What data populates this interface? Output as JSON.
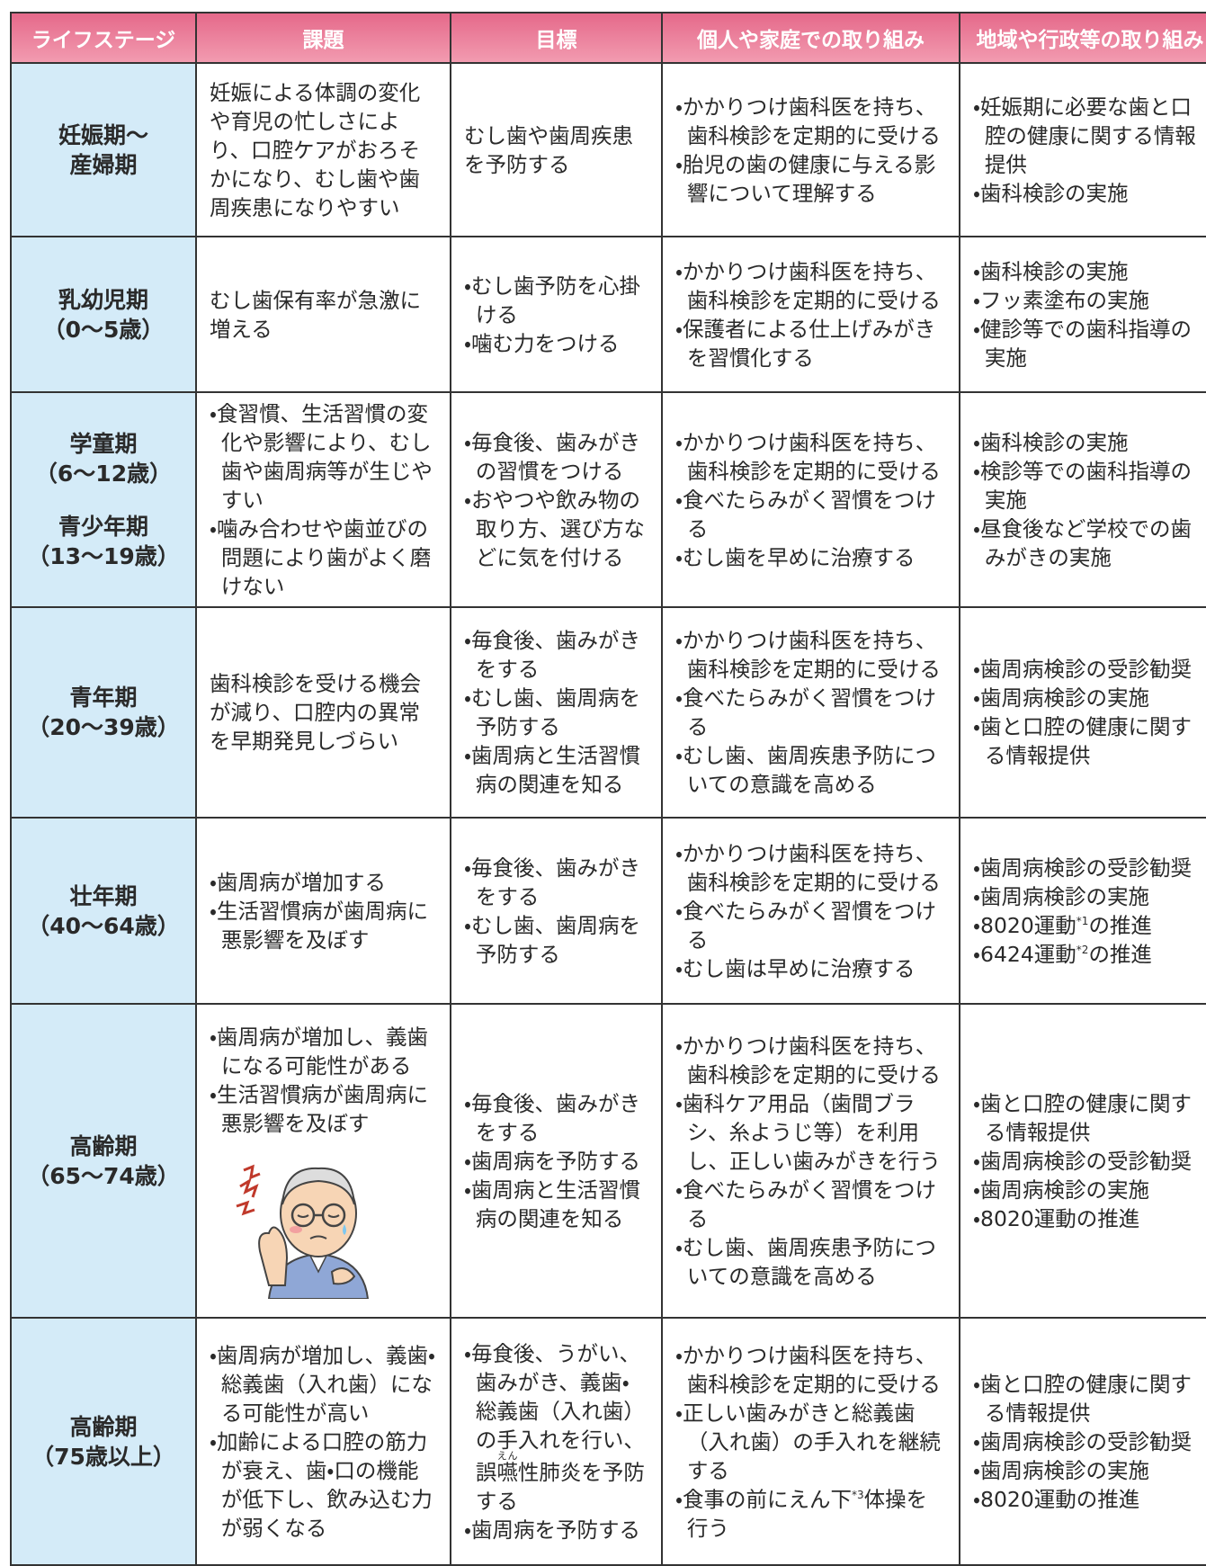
{
  "table": {
    "header": [
      "ライフステージ",
      "課題",
      "目標",
      "個人や家庭での取り組み",
      "地域や行政等の取り組み"
    ],
    "rows": [
      {
        "stage": [
          [
            "妊娠期〜",
            "産婦期"
          ]
        ],
        "issue": [
          "妊娠による体調の変化や育児の忙しさにより、口腔ケアがおろそかになり、むし歯や歯周疾患になりやすい"
        ],
        "goal": [
          "むし歯や歯周疾患を予防する"
        ],
        "personal": [
          "・かかりつけ歯科医を持ち、歯科検診を定期的に受ける",
          "・胎児の歯の健康に与える影響について理解する"
        ],
        "community": [
          "・妊娠期に必要な歯と口腔の健康に関する情報提供",
          "・歯科検診の実施"
        ]
      },
      {
        "stage": [
          [
            "乳幼児期",
            "（0〜5歳）"
          ]
        ],
        "issue": [
          "むし歯保有率が急激に増える"
        ],
        "goal": [
          "・むし歯予防を心掛ける",
          "・噛む力をつける"
        ],
        "personal": [
          "・かかりつけ歯科医を持ち、歯科検診を定期的に受ける",
          "・保護者による仕上げみがきを習慣化する"
        ],
        "community": [
          "・歯科検診の実施",
          "・フッ素塗布の実施",
          "・健診等での歯科指導の実施"
        ]
      },
      {
        "stage": [
          [
            "学童期",
            "（6〜12歳）"
          ],
          [
            "青少年期",
            "（13〜19歳）"
          ]
        ],
        "issue": [
          "・食習慣、生活習慣の変化や影響により、むし歯や歯周病等が生じやすい",
          "・噛み合わせや歯並びの問題により歯がよく磨けない"
        ],
        "goal": [
          "・毎食後、歯みがきの習慣をつける",
          "・おやつや飲み物の取り方、選び方などに気を付ける"
        ],
        "personal": [
          "・かかりつけ歯科医を持ち、歯科検診を定期的に受ける",
          "・食べたらみがく習慣をつける",
          "・むし歯を早めに治療する"
        ],
        "community": [
          "・歯科検診の実施",
          "・検診等での歯科指導の実施",
          "・昼食後など学校での歯みがきの実施"
        ]
      },
      {
        "stage": [
          [
            "青年期",
            "（20〜39歳）"
          ]
        ],
        "issue": [
          "歯科検診を受ける機会が減り、口腔内の異常を早期発見しづらい"
        ],
        "goal": [
          "・毎食後、歯みがきをする",
          "・むし歯、歯周病を予防する",
          "・歯周病と生活習慣病の関連を知る"
        ],
        "personal": [
          "・かかりつけ歯科医を持ち、歯科検診を定期的に受ける",
          "・食べたらみがく習慣をつける",
          "・むし歯、歯周疾患予防についての意識を高める"
        ],
        "community": [
          "・歯周病検診の受診勧奨",
          "・歯周病検診の実施",
          "・歯と口腔の健康に関する情報提供"
        ]
      },
      {
        "stage": [
          [
            "壮年期",
            "（40〜64歳）"
          ]
        ],
        "issue": [
          "・歯周病が増加する",
          "・生活習慣病が歯周病に悪影響を及ぼす"
        ],
        "goal": [
          "・毎食後、歯みがきをする",
          "・むし歯、歯周病を予防する"
        ],
        "personal": [
          "・かかりつけ歯科医を持ち、歯科検診を定期的に受ける",
          "・食べたらみがく習慣をつける",
          "・むし歯は早めに治療する"
        ],
        "community": [
          "・歯周病検診の受診勧奨",
          "・歯周病検診の実施",
          [
            "・8020運動",
            {
              "sup": "*1"
            },
            "の推進"
          ],
          [
            "・6424運動",
            {
              "sup": "*2"
            },
            "の推進"
          ]
        ]
      },
      {
        "stage": [
          [
            "高齢期",
            "（65〜74歳）"
          ]
        ],
        "issue": [
          "・歯周病が増加し、義歯になる可能性がある",
          "・生活習慣病が歯周病に悪影響を及ぼす"
        ],
        "goal": [
          "・毎食後、歯みがきをする",
          "・歯周病を予防する",
          "・歯周病と生活習慣病の関連を知る"
        ],
        "personal": [
          "・かかりつけ歯科医を持ち、歯科検診を定期的に受ける",
          "・歯科ケア用品（歯間ブラシ、糸ようじ等）を利用し、正しい歯みがきを行う",
          "・食べたらみがく習慣をつける",
          "・むし歯、歯周疾患予防についての意識を高める"
        ],
        "community": [
          "・歯と口腔の健康に関する情報提供",
          "・歯周病検診の受診勧奨",
          "・歯周病検診の実施",
          "・8020運動の推進"
        ]
      },
      {
        "stage": [
          [
            "高齢期",
            "（75歳以上）"
          ]
        ],
        "issue": [
          "・歯周病が増加し、義歯・総義歯（入れ歯）になる可能性が高い",
          "・加齢による口腔の筋力が衰え、歯・口の機能が低下し、飲み込む力が弱くなる"
        ],
        "goal": [
          [
            "・毎食後、うがい、歯みがき、義歯・総義歯（入れ歯）の手入れを行い、誤",
            {
              "base": "嚥",
              "ruby": "えん"
            },
            "性肺炎を予防する"
          ],
          "・歯周病を予防する"
        ],
        "personal": [
          "・かかりつけ歯科医を持ち、歯科検診を定期的に受ける",
          "・正しい歯みがきと総義歯（入れ歯）の手入れを継続する",
          [
            "・食事の前にえん下",
            {
              "sup": "*3"
            },
            "体操を行う"
          ]
        ],
        "community": [
          "・歯と口腔の健康に関する情報提供",
          "・歯周病検診の受診勧奨",
          "・歯周病検診の実施",
          "・8020運動の推進"
        ]
      }
    ]
  }
}
